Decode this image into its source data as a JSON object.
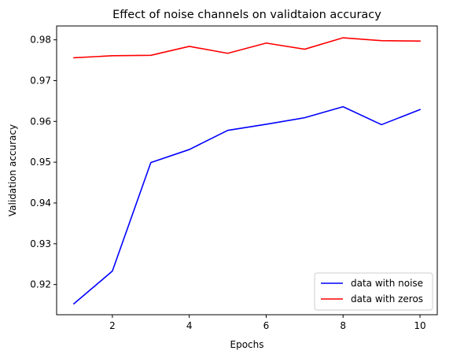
{
  "chart_data": {
    "type": "line",
    "title": "Effect of noise channels on validtaion accuracy",
    "xlabel": "Epochs",
    "ylabel": "Validation accuracy",
    "xlim": [
      0.55,
      10.45
    ],
    "ylim": [
      0.9126,
      0.9834
    ],
    "xticks": [
      2,
      4,
      6,
      8,
      10
    ],
    "yticks": [
      0.92,
      0.93,
      0.94,
      0.95,
      0.96,
      0.97,
      0.98
    ],
    "x": [
      1,
      2,
      3,
      4,
      5,
      6,
      7,
      8,
      9,
      10
    ],
    "series": [
      {
        "name": "data with noise",
        "color": "#0000ff",
        "values": [
          0.9153,
          0.9233,
          0.9499,
          0.9531,
          0.9578,
          0.9593,
          0.9609,
          0.9636,
          0.9592,
          0.9629
        ]
      },
      {
        "name": "data with zeros",
        "color": "#ff0000",
        "values": [
          0.9756,
          0.9761,
          0.9762,
          0.9784,
          0.9767,
          0.9792,
          0.9777,
          0.9805,
          0.9798,
          0.9797
        ]
      }
    ],
    "grid": false,
    "legend_position": "lower-right"
  }
}
